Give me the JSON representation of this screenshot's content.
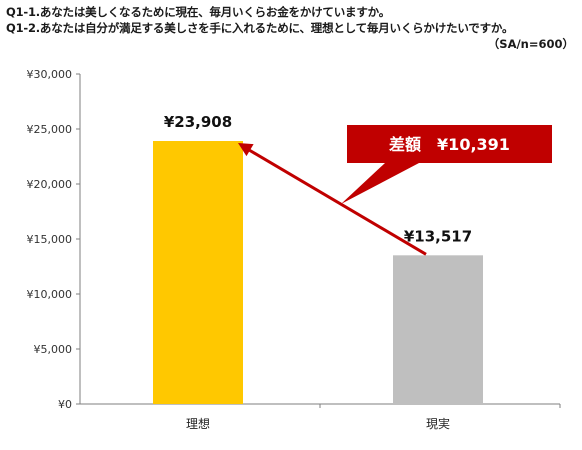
{
  "header": {
    "q1": "Q1-1.あなたは美しくなるために現在、毎月いくらお金をかけていますか。",
    "q2": "Q1-2.あなたは自分が満足する美しさを手に入れるために、理想として毎月いくらかけたいですか。",
    "sample": "（SA/n=600）"
  },
  "chart_data": {
    "type": "bar",
    "categories": [
      "理想",
      "現実"
    ],
    "values": [
      23908,
      13517
    ],
    "data_labels": [
      "¥23,908",
      "¥13,517"
    ],
    "colors": [
      "#FFC800",
      "#BFBFBF"
    ],
    "ylim": [
      0,
      30000
    ],
    "yticks": [
      0,
      5000,
      10000,
      15000,
      20000,
      25000,
      30000
    ],
    "ytick_labels": [
      "¥0",
      "¥5,000",
      "¥10,000",
      "¥15,000",
      "¥20,000",
      "¥25,000",
      "¥30,000"
    ],
    "grid": false,
    "annotation": {
      "text": "差額　¥10,391",
      "value": 10391,
      "color": "#C00000",
      "arrow_from": "現実",
      "arrow_to": "理想"
    }
  }
}
